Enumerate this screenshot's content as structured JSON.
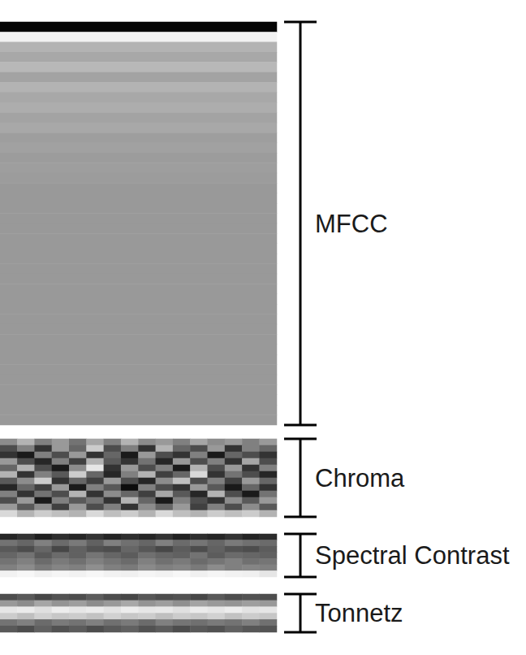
{
  "chart_data": [
    {
      "type": "heatmap",
      "label": "MFCC",
      "color_range": [
        0,
        1
      ],
      "tick_labels": false,
      "cells": [
        [
          0.02
        ],
        [
          0.95
        ],
        [
          0.7
        ],
        [
          0.66
        ],
        [
          0.72
        ],
        [
          0.64
        ],
        [
          0.7
        ],
        [
          0.66
        ],
        [
          0.68
        ],
        [
          0.64
        ],
        [
          0.66
        ],
        [
          0.62
        ],
        [
          0.63
        ],
        [
          0.61
        ],
        [
          0.62
        ],
        [
          0.61
        ],
        [
          0.6
        ],
        [
          0.6
        ],
        [
          0.6
        ],
        [
          0.6
        ],
        [
          0.6
        ],
        [
          0.6
        ],
        [
          0.6
        ],
        [
          0.6
        ],
        [
          0.6
        ],
        [
          0.6
        ],
        [
          0.6
        ],
        [
          0.6
        ],
        [
          0.6
        ],
        [
          0.6
        ],
        [
          0.6
        ],
        [
          0.6
        ],
        [
          0.6
        ],
        [
          0.6
        ],
        [
          0.6
        ],
        [
          0.6
        ],
        [
          0.6
        ],
        [
          0.6
        ],
        [
          0.6
        ],
        [
          0.6
        ]
      ]
    },
    {
      "type": "heatmap",
      "label": "Chroma",
      "color_range": [
        0,
        1
      ],
      "tick_labels": false,
      "cells": [
        [
          0.55,
          0.7,
          0.5,
          0.6,
          0.45,
          0.65,
          0.5,
          0.7,
          0.55,
          0.6,
          0.5,
          0.65,
          0.55,
          0.6,
          0.5,
          0.6
        ],
        [
          0.3,
          0.5,
          0.2,
          0.6,
          0.4,
          0.8,
          0.3,
          0.5,
          0.2,
          0.7,
          0.4,
          0.3,
          0.6,
          0.2,
          0.5,
          0.4
        ],
        [
          0.2,
          0.1,
          0.5,
          0.3,
          0.6,
          0.2,
          0.4,
          0.1,
          0.6,
          0.3,
          0.2,
          0.5,
          0.1,
          0.4,
          0.3,
          0.2
        ],
        [
          0.6,
          0.3,
          0.15,
          0.5,
          0.25,
          0.7,
          0.35,
          0.2,
          0.45,
          0.15,
          0.6,
          0.3,
          0.5,
          0.2,
          0.65,
          0.3
        ],
        [
          0.4,
          0.7,
          0.3,
          0.1,
          0.55,
          0.9,
          0.2,
          0.6,
          0.3,
          0.5,
          0.1,
          0.7,
          0.3,
          0.6,
          0.2,
          0.5
        ],
        [
          0.7,
          0.2,
          0.5,
          0.35,
          0.8,
          0.4,
          0.15,
          0.5,
          0.7,
          0.25,
          0.4,
          0.85,
          0.2,
          0.45,
          0.3,
          0.15
        ],
        [
          0.35,
          0.55,
          0.8,
          0.2,
          0.4,
          0.25,
          0.6,
          0.3,
          0.15,
          0.55,
          0.75,
          0.3,
          0.5,
          0.25,
          0.6,
          0.4
        ],
        [
          0.15,
          0.4,
          0.25,
          0.6,
          0.1,
          0.5,
          0.35,
          0.05,
          0.5,
          0.3,
          0.2,
          0.6,
          0.35,
          0.1,
          0.4,
          0.2
        ],
        [
          0.5,
          0.2,
          0.45,
          0.3,
          0.7,
          0.2,
          0.55,
          0.4,
          0.25,
          0.65,
          0.35,
          0.15,
          0.7,
          0.3,
          0.1,
          0.45
        ],
        [
          0.3,
          0.6,
          0.1,
          0.5,
          0.35,
          0.45,
          0.2,
          0.7,
          0.4,
          0.1,
          0.5,
          0.3,
          0.2,
          0.55,
          0.35,
          0.6
        ],
        [
          0.6,
          0.35,
          0.55,
          0.25,
          0.6,
          0.3,
          0.5,
          0.2,
          0.55,
          0.4,
          0.6,
          0.25,
          0.5,
          0.3,
          0.55,
          0.35
        ],
        [
          0.85,
          0.7,
          0.8,
          0.75,
          0.7,
          0.85,
          0.75,
          0.8,
          0.7,
          0.85,
          0.75,
          0.7,
          0.8,
          0.75,
          0.8,
          0.7
        ]
      ]
    },
    {
      "type": "heatmap",
      "label": "Spectral Contrast",
      "color_range": [
        0,
        1
      ],
      "tick_labels": false,
      "cells": [
        [
          0.15,
          0.2,
          0.12,
          0.18,
          0.15,
          0.2,
          0.14,
          0.18,
          0.15,
          0.2,
          0.13,
          0.18,
          0.15,
          0.2,
          0.14,
          0.17
        ],
        [
          0.45,
          0.4,
          0.5,
          0.42,
          0.48,
          0.38,
          0.5,
          0.44,
          0.4,
          0.5,
          0.42,
          0.46,
          0.4,
          0.48,
          0.44,
          0.42
        ],
        [
          0.35,
          0.3,
          0.4,
          0.28,
          0.38,
          0.32,
          0.3,
          0.4,
          0.34,
          0.28,
          0.36,
          0.3,
          0.38,
          0.32,
          0.3,
          0.36
        ],
        [
          0.4,
          0.45,
          0.35,
          0.42,
          0.38,
          0.46,
          0.4,
          0.36,
          0.44,
          0.4,
          0.38,
          0.45,
          0.36,
          0.42,
          0.4,
          0.38
        ],
        [
          0.45,
          0.5,
          0.42,
          0.48,
          0.44,
          0.5,
          0.46,
          0.42,
          0.5,
          0.44,
          0.48,
          0.42,
          0.46,
          0.5,
          0.44,
          0.46
        ],
        [
          0.5,
          0.55,
          0.48,
          0.52,
          0.5,
          0.56,
          0.5,
          0.48,
          0.54,
          0.5,
          0.52,
          0.48,
          0.55,
          0.5,
          0.52,
          0.5
        ],
        [
          0.95,
          0.97,
          0.94,
          0.96,
          0.95,
          0.97,
          0.95,
          0.94,
          0.96,
          0.95,
          0.97,
          0.94,
          0.96,
          0.95,
          0.94,
          0.9
        ]
      ]
    },
    {
      "type": "heatmap",
      "label": "Tonnetz",
      "color_range": [
        0,
        1
      ],
      "tick_labels": false,
      "cells": [
        [
          0.3,
          0.35,
          0.28,
          0.32,
          0.3,
          0.36,
          0.3,
          0.28,
          0.34,
          0.3,
          0.32,
          0.28,
          0.35,
          0.3,
          0.32,
          0.3
        ],
        [
          0.6,
          0.55,
          0.65,
          0.58,
          0.62,
          0.55,
          0.6,
          0.66,
          0.58,
          0.62,
          0.56,
          0.64,
          0.6,
          0.58,
          0.62,
          0.6
        ],
        [
          0.9,
          0.92,
          0.88,
          0.93,
          0.9,
          0.92,
          0.89,
          0.93,
          0.9,
          0.91,
          0.88,
          0.92,
          0.9,
          0.93,
          0.89,
          0.9
        ],
        [
          0.8,
          0.75,
          0.82,
          0.78,
          0.8,
          0.76,
          0.82,
          0.78,
          0.8,
          0.75,
          0.8,
          0.78,
          0.82,
          0.76,
          0.8,
          0.78
        ],
        [
          0.45,
          0.5,
          0.42,
          0.48,
          0.45,
          0.5,
          0.44,
          0.48,
          0.42,
          0.5,
          0.46,
          0.44,
          0.48,
          0.45,
          0.5,
          0.44
        ],
        [
          0.35,
          0.3,
          0.38,
          0.32,
          0.36,
          0.3,
          0.35,
          0.38,
          0.32,
          0.36,
          0.3,
          0.35,
          0.32,
          0.38,
          0.34,
          0.33
        ]
      ]
    }
  ]
}
